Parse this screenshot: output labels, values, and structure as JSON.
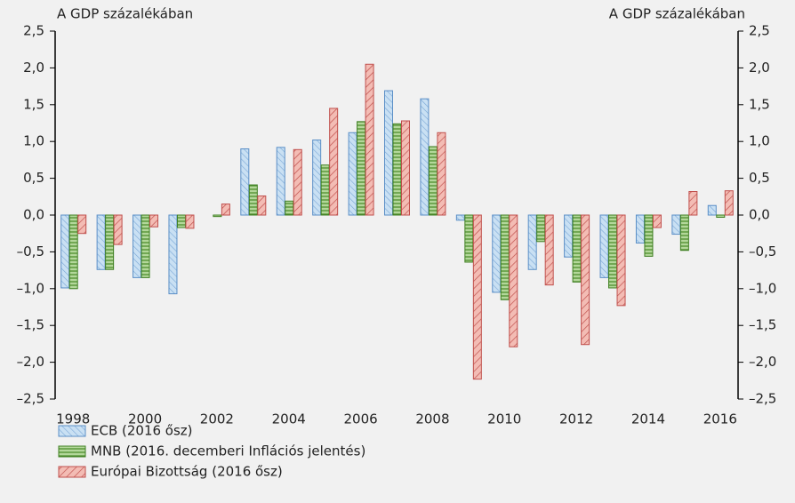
{
  "chart_data": {
    "type": "bar",
    "y_label": "A GDP százalékában",
    "y2_label": "A GDP százalékában",
    "categories": [
      "1998",
      null,
      "2000",
      null,
      "2002",
      null,
      "2004",
      null,
      "2006",
      null,
      "2008",
      null,
      "2010",
      null,
      "2012",
      null,
      "2014",
      null,
      "2016"
    ],
    "series": [
      {
        "name": "ECB (2016 ősz)",
        "color": "#5b8fc7",
        "fill": "#c9e0f3",
        "values": [
          -0.99,
          -0.74,
          -0.85,
          -1.07,
          0.0,
          0.9,
          0.92,
          1.02,
          1.12,
          1.69,
          1.58,
          -0.07,
          -1.05,
          -0.74,
          -0.57,
          -0.85,
          -0.38,
          -0.26,
          0.13
        ]
      },
      {
        "name": "MNB (2016. decemberi Inflációs jelentés)",
        "color": "#3f7f22",
        "fill": "#b3d79a",
        "values": [
          -1.0,
          -0.74,
          -0.85,
          -0.17,
          -0.02,
          0.41,
          0.19,
          0.68,
          1.27,
          1.24,
          0.93,
          -0.64,
          -1.15,
          -0.36,
          -0.91,
          -0.99,
          -0.56,
          -0.48,
          -0.03
        ]
      },
      {
        "name": "Európai Bizottság (2016 ősz)",
        "color": "#c0504d",
        "fill": "#f3bcb4",
        "values": [
          -0.25,
          -0.4,
          -0.16,
          -0.18,
          0.15,
          0.26,
          0.89,
          1.45,
          2.05,
          1.28,
          1.12,
          -2.23,
          -1.79,
          -0.95,
          -1.76,
          -1.23,
          -0.17,
          0.32,
          0.33
        ]
      }
    ],
    "ylim": [
      -2.5,
      2.5
    ],
    "yticks": [
      {
        "value": 2.5,
        "label": "2,5"
      },
      {
        "value": 2.0,
        "label": "2,0"
      },
      {
        "value": 1.5,
        "label": "1,5"
      },
      {
        "value": 1.0,
        "label": "1,0"
      },
      {
        "value": 0.5,
        "label": "0,5"
      },
      {
        "value": 0,
        "label": "0,0"
      },
      {
        "value": -0.5,
        "label": "–0,5"
      },
      {
        "value": -1.0,
        "label": "–1,0"
      },
      {
        "value": -1.5,
        "label": "–1,5"
      },
      {
        "value": -2.0,
        "label": "–2,0"
      },
      {
        "value": -2.5,
        "label": "–2,5"
      }
    ],
    "y2lim": [
      -2.5,
      2.5
    ],
    "y2ticks": [
      {
        "value": 2.5,
        "label": "2,5"
      },
      {
        "value": 2.0,
        "label": "2,0"
      },
      {
        "value": 1.5,
        "label": "1,5"
      },
      {
        "value": 1.0,
        "label": "1,0"
      },
      {
        "value": 0.5,
        "label": "0,5"
      },
      {
        "value": 0,
        "label": "0,0"
      },
      {
        "value": -0.5,
        "label": "–0,5"
      },
      {
        "value": -1.0,
        "label": "–1,0"
      },
      {
        "value": -1.5,
        "label": "–1,5"
      },
      {
        "value": -2.0,
        "label": "–2,0"
      },
      {
        "value": -2.5,
        "label": "–2,5"
      }
    ],
    "legend": "bottom-left"
  }
}
